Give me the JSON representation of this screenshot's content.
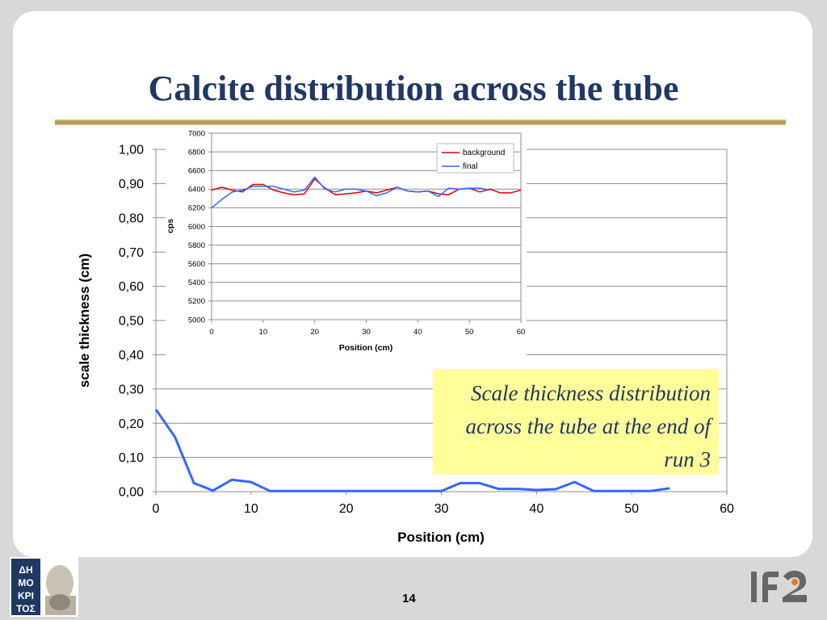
{
  "slide": {
    "title": "Calcite distribution across the tube",
    "caption": "Scale thickness distribution across the tube at the end of run 3",
    "page_number": "14",
    "logos": {
      "left": "Democritus logo",
      "right": "IFE logo"
    }
  },
  "colors": {
    "title": "#1f3864",
    "main_line": "#3366ff",
    "inset_background": "#e00000",
    "inset_final": "#3366ff",
    "caption_bg": "#ffff99"
  },
  "chart_data": [
    {
      "type": "line",
      "xlabel": "Position (cm)",
      "ylabel": "scale thickness (cm)",
      "xlim": [
        0,
        60
      ],
      "ylim": [
        0,
        1.0
      ],
      "x_ticks": [
        "0",
        "10",
        "20",
        "30",
        "40",
        "50",
        "60"
      ],
      "y_ticks": [
        "0,00",
        "0,10",
        "0,20",
        "0,30",
        "0,40",
        "0,50",
        "0,60",
        "0,70",
        "0,80",
        "0,90",
        "1,00"
      ],
      "grid": true,
      "series": [
        {
          "x": [
            0,
            2,
            4,
            6,
            8,
            10,
            12,
            14,
            16,
            18,
            20,
            22,
            24,
            26,
            28,
            30,
            32,
            34,
            36,
            38,
            40,
            42,
            44,
            46,
            48,
            50,
            52,
            54
          ],
          "values": [
            0.24,
            0.16,
            0.025,
            0.003,
            0.035,
            0.028,
            0.002,
            0.002,
            0.002,
            0.002,
            0.002,
            0.002,
            0.002,
            0.002,
            0.002,
            0.002,
            0.025,
            0.025,
            0.008,
            0.008,
            0.005,
            0.007,
            0.028,
            0.002,
            0.002,
            0.002,
            0.002,
            0.01
          ]
        }
      ]
    },
    {
      "type": "line",
      "xlabel": "Position (cm)",
      "ylabel": "cps",
      "xlim": [
        0,
        60
      ],
      "ylim": [
        5000,
        7000
      ],
      "x_ticks": [
        "0",
        "10",
        "20",
        "30",
        "40",
        "50",
        "60"
      ],
      "y_ticks": [
        "5000",
        "5200",
        "5400",
        "5600",
        "5800",
        "6000",
        "6200",
        "6400",
        "6600",
        "6800",
        "7000"
      ],
      "grid": true,
      "legend_position": "top-right",
      "series": [
        {
          "name": "background",
          "x": [
            0,
            2,
            4,
            6,
            8,
            10,
            12,
            14,
            16,
            18,
            20,
            22,
            24,
            26,
            28,
            30,
            32,
            34,
            36,
            38,
            40,
            42,
            44,
            46,
            48,
            50,
            52,
            54,
            56,
            58,
            60
          ],
          "values": [
            6390,
            6420,
            6390,
            6370,
            6450,
            6450,
            6390,
            6360,
            6340,
            6350,
            6510,
            6410,
            6340,
            6350,
            6360,
            6380,
            6360,
            6390,
            6420,
            6380,
            6370,
            6380,
            6350,
            6340,
            6400,
            6410,
            6370,
            6400,
            6360,
            6360,
            6390
          ]
        },
        {
          "name": "final",
          "x": [
            0,
            2,
            4,
            6,
            8,
            10,
            12,
            14,
            16,
            18,
            20,
            22,
            24,
            26,
            28,
            30,
            32,
            34,
            36,
            38,
            40,
            42,
            44,
            46,
            48,
            50,
            52,
            54
          ],
          "values": [
            6200,
            6290,
            6370,
            6390,
            6430,
            6430,
            6430,
            6400,
            6370,
            6390,
            6530,
            6400,
            6370,
            6400,
            6400,
            6380,
            6330,
            6360,
            6420,
            6380,
            6370,
            6380,
            6320,
            6410,
            6400,
            6410,
            6410,
            6390
          ]
        }
      ]
    }
  ]
}
